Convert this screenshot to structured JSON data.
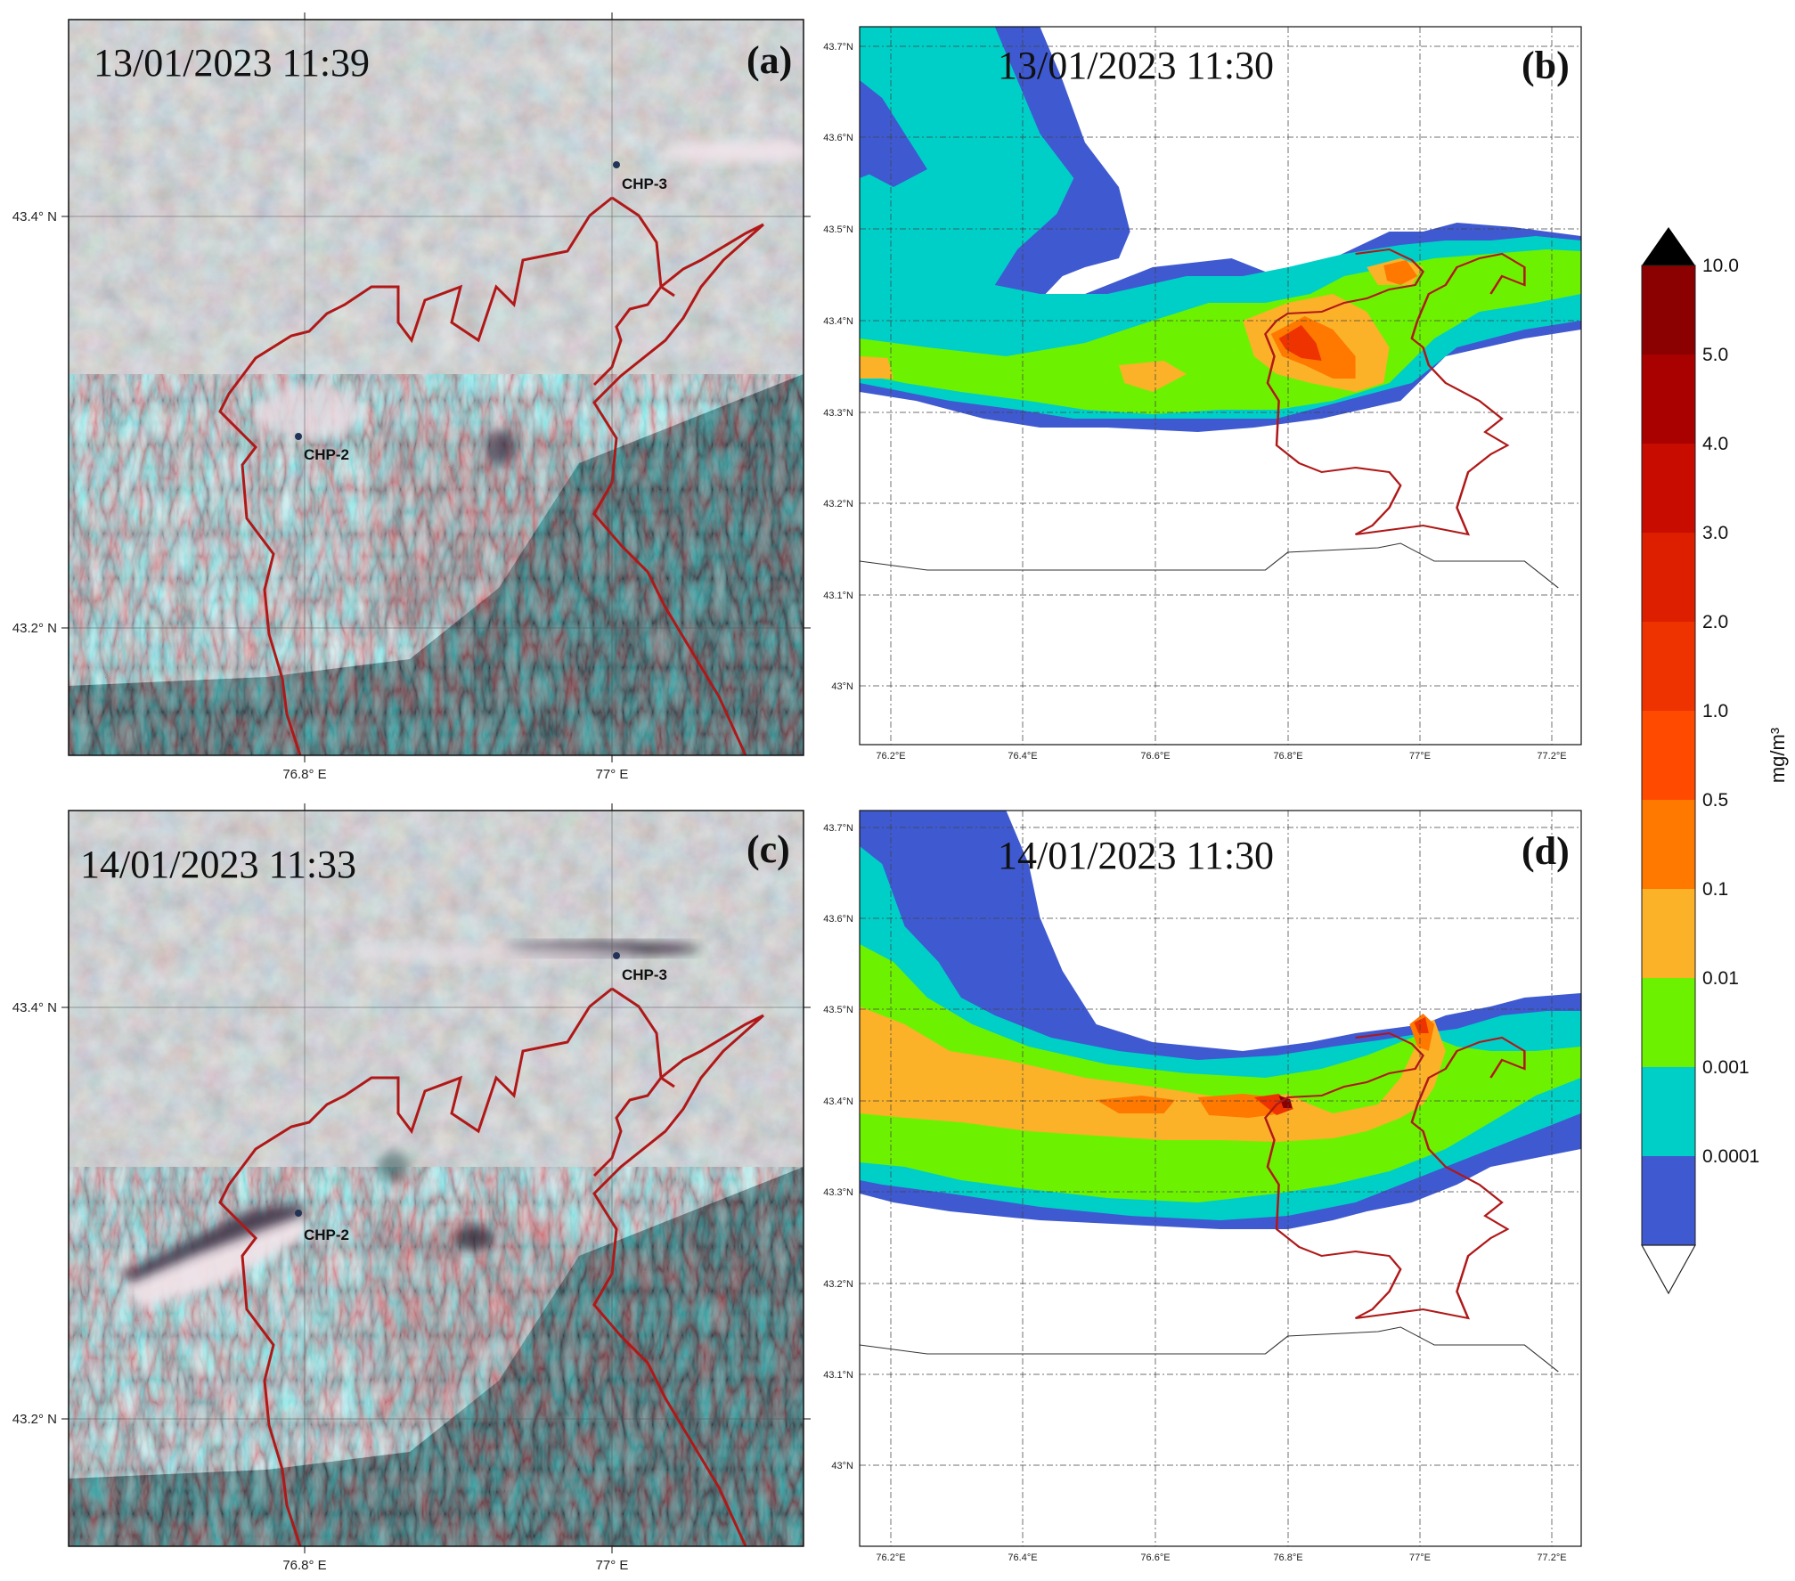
{
  "panels": [
    {
      "id": "a",
      "timestamp": "13/01/2023 11:39",
      "letter": "(a)",
      "plants": [
        {
          "label": "CHP-3"
        },
        {
          "label": "CHP-2"
        }
      ],
      "lon_ticks": [
        "76.8° E",
        "77° E"
      ],
      "lat_ticks": [
        "43.4° N",
        "43.2° N"
      ]
    },
    {
      "id": "b",
      "timestamp": "13/01/2023 11:30",
      "letter": "(b)",
      "lon_ticks": [
        "76.2°E",
        "76.4°E",
        "76.6°E",
        "76.8°E",
        "77°E",
        "77.2°E"
      ],
      "lat_ticks": [
        "43.7°N",
        "43.6°N",
        "43.5°N",
        "43.4°N",
        "43.3°N",
        "43.2°N",
        "43.1°N",
        "43°N"
      ]
    },
    {
      "id": "c",
      "timestamp": "14/01/2023 11:33",
      "letter": "(c)",
      "plants": [
        {
          "label": "CHP-3"
        },
        {
          "label": "CHP-2"
        }
      ],
      "lon_ticks": [
        "76.8° E",
        "77° E"
      ],
      "lat_ticks": [
        "43.4° N",
        "43.2° N"
      ]
    },
    {
      "id": "d",
      "timestamp": "14/01/2023 11:30",
      "letter": "(d)",
      "lon_ticks": [
        "76.2°E",
        "76.4°E",
        "76.6°E",
        "76.8°E",
        "77°E",
        "77.2°E"
      ],
      "lat_ticks": [
        "43.7°N",
        "43.6°N",
        "43.5°N",
        "43.4°N",
        "43.3°N",
        "43.2°N",
        "43.1°N",
        "43°N"
      ]
    }
  ],
  "colorbar": {
    "unit": "mg/m³",
    "levels": [
      "10.0",
      "5.0",
      "4.0",
      "3.0",
      "2.0",
      "1.0",
      "0.5",
      "0.1",
      "0.01",
      "0.001",
      "0.0001"
    ],
    "colors": [
      "#8b0000",
      "#a90000",
      "#c80c00",
      "#dd1f00",
      "#ee3300",
      "#ff4a00",
      "#ff7800",
      "#fbb229",
      "#6cf200",
      "#00cfc8",
      "#3f59d0"
    ],
    "over_color": "#000000",
    "under_color": "#ffffff"
  },
  "colors": {
    "boundary": "#b01818",
    "plant_marker": "#223355"
  }
}
